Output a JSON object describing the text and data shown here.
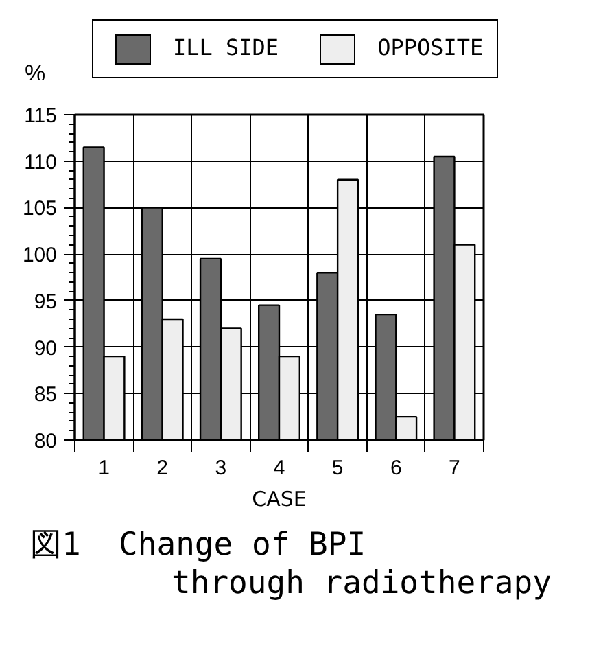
{
  "chart_data": {
    "type": "bar",
    "title": "図1  Change of BPI\nthrough radiotherapy",
    "xlabel": "CASE",
    "ylabel": "%",
    "categories": [
      "1",
      "2",
      "3",
      "4",
      "5",
      "6",
      "7"
    ],
    "series": [
      {
        "name": "ILL SIDE",
        "color": "#6a6a6a",
        "values": [
          111.5,
          105,
          99.5,
          94.5,
          98,
          93.5,
          110.5
        ]
      },
      {
        "name": "OPPOSITE",
        "color": "#eeeeee",
        "values": [
          89,
          93,
          92,
          89,
          108,
          82.5,
          101
        ]
      }
    ],
    "ylim": [
      80,
      115
    ],
    "yticks": [
      80,
      85,
      90,
      95,
      100,
      105,
      110,
      115
    ],
    "grid": true,
    "legend": "top"
  }
}
